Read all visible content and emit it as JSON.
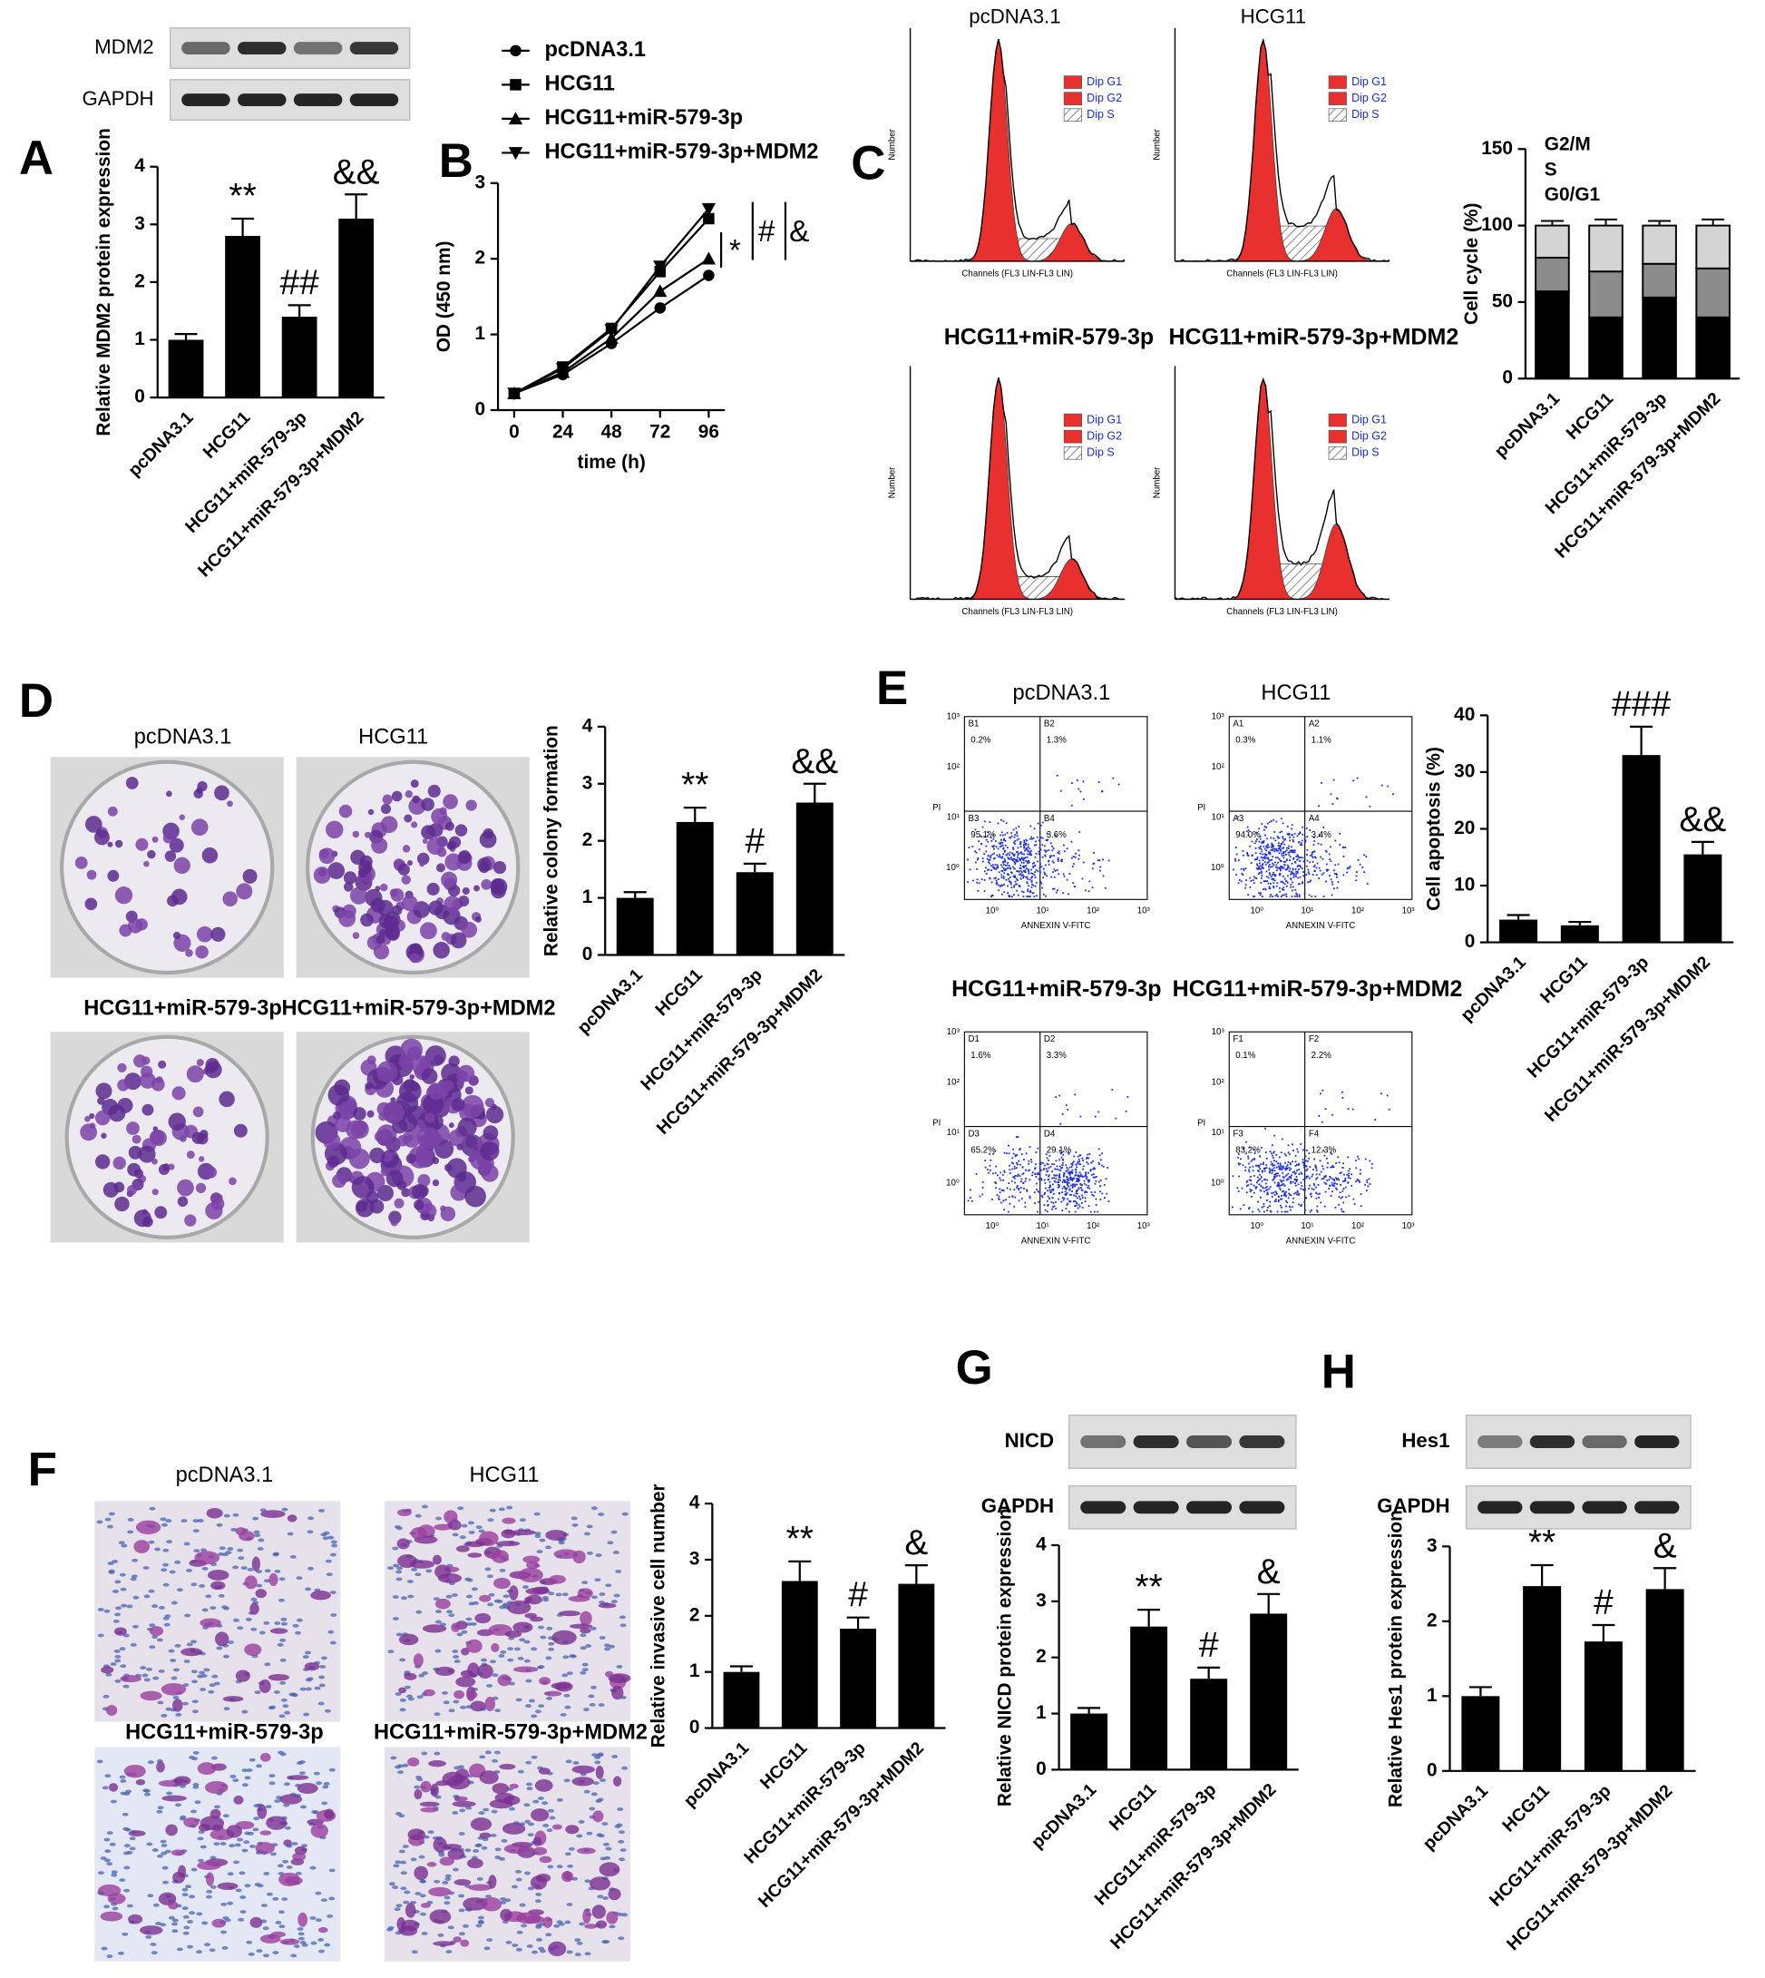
{
  "panels": [
    "A",
    "B",
    "C",
    "D",
    "E",
    "F",
    "G",
    "H"
  ],
  "blots": [
    {
      "labels": [
        "MDM2",
        "GAPDH"
      ]
    },
    {
      "labels": [
        "NICD",
        "GAPDH"
      ]
    },
    {
      "labels": [
        "Hes1",
        "GAPDH"
      ]
    }
  ],
  "cell_cycle_histograms": {
    "titles": [
      "pcDNA3.1",
      "HCG11",
      "HCG11+miR-579-3p",
      "HCG11+miR-579-3p+MDM2"
    ],
    "legend": [
      "Dip G1",
      "Dip G2",
      "Dip S"
    ],
    "ylabel": "Number",
    "xlabel": "Channels (FL3 LIN-FL3 LIN)"
  },
  "colony_images": {
    "titles": [
      "pcDNA3.1",
      "HCG11",
      "HCG11+miR-579-3p",
      "HCG11+miR-579-3p+MDM2"
    ]
  },
  "apoptosis_plots": {
    "titles": [
      "pcDNA3.1",
      "HCG11",
      "HCG11+miR-579-3p",
      "HCG11+miR-579-3p+MDM2"
    ],
    "ylabel": "PI",
    "xlabel": "ANNEXIN V-FITC",
    "ticks": [
      "10⁰",
      "10¹",
      "10²",
      "10³"
    ],
    "quadrants": [
      [
        [
          "B1",
          "0.2%"
        ],
        [
          "B2",
          "1.3%"
        ],
        [
          "B3",
          "95.1%"
        ],
        [
          "B4",
          "3.6%"
        ]
      ],
      [
        [
          "A1",
          "0.3%"
        ],
        [
          "A2",
          "1.1%"
        ],
        [
          "A3",
          "94.0%"
        ],
        [
          "A4",
          "3.4%"
        ]
      ],
      [
        [
          "D1",
          "1.6%"
        ],
        [
          "D2",
          "3.3%"
        ],
        [
          "D3",
          "65.2%"
        ],
        [
          "D4",
          "29.1%"
        ]
      ],
      [
        [
          "F1",
          "0.1%"
        ],
        [
          "F2",
          "2.2%"
        ],
        [
          "F3",
          "83.2%"
        ],
        [
          "F4",
          "12.3%"
        ]
      ]
    ]
  },
  "invasion_images": {
    "titles": [
      "pcDNA3.1",
      "HCG11",
      "HCG11+miR-579-3p",
      "HCG11+miR-579-3p+MDM2"
    ]
  },
  "chart_data": [
    {
      "type": "bar",
      "ylabel": "Relative MDM2 protein expression",
      "categories": [
        "pcDNA3.1",
        "HCG11",
        "HCG11+miR-579-3p",
        "HCG11+miR-579-3p+MDM2"
      ],
      "values": [
        1,
        2.8,
        1.4,
        3.1
      ],
      "errors": [
        0.1,
        0.3,
        0.2,
        0.42
      ],
      "annotations": [
        null,
        "**",
        "##",
        "&&"
      ],
      "color": "#000000",
      "ylim": [
        0,
        4
      ],
      "yticks": [
        0,
        1,
        2,
        3,
        4
      ]
    },
    {
      "type": "line",
      "xlabel": "time (h)",
      "ylabel": "OD (450 nm)",
      "x": [
        0,
        24,
        48,
        72,
        96
      ],
      "series": [
        {
          "name": "pcDNA3.1",
          "marker": "circle",
          "color": "#000000",
          "values": [
            0.22,
            0.47,
            0.88,
            1.35,
            1.78
          ]
        },
        {
          "name": "HCG11",
          "marker": "square",
          "color": "#000000",
          "values": [
            0.22,
            0.57,
            1.08,
            1.83,
            2.53
          ]
        },
        {
          "name": "HCG11+miR-579-3p",
          "marker": "triangle",
          "color": "#000000",
          "values": [
            0.22,
            0.5,
            0.95,
            1.57,
            2.0
          ]
        },
        {
          "name": "HCG11+miR-579-3p+MDM2",
          "marker": "triangle-down",
          "color": "#000000",
          "values": [
            0.22,
            0.55,
            1.06,
            1.9,
            2.66
          ]
        }
      ],
      "annotations": [
        "*",
        "#",
        "&"
      ],
      "xlim": [
        -8,
        104
      ],
      "xticks": [
        0,
        24,
        48,
        72,
        96
      ],
      "ylim": [
        0,
        3
      ],
      "yticks": [
        0,
        1,
        2,
        3
      ]
    },
    {
      "type": "stacked-bar",
      "ylabel": "Cell cycle (%)",
      "categories": [
        "pcDNA3.1",
        "HCG11",
        "HCG11+miR-579-3p",
        "HCG11+miR-579-3p+MDM2"
      ],
      "series": [
        {
          "name": "G0/G1",
          "color": "#000000",
          "values": [
            57,
            40,
            53,
            40
          ],
          "errors": [
            6,
            5,
            6,
            5
          ]
        },
        {
          "name": "S",
          "color": "#8c8c8c",
          "values": [
            22,
            30,
            22,
            32
          ],
          "errors": [
            4,
            4,
            4,
            5
          ]
        },
        {
          "name": "G2/M",
          "color": "#d4d4d4",
          "values": [
            21,
            30,
            25,
            28
          ],
          "errors": [
            3,
            4,
            3,
            4
          ]
        }
      ],
      "ylim": [
        0,
        150
      ],
      "yticks": [
        0,
        50,
        100,
        150
      ]
    },
    {
      "type": "bar",
      "ylabel": "Relative colony formation",
      "categories": [
        "pcDNA3.1",
        "HCG11",
        "HCG11+miR-579-3p",
        "HCG11+miR-579-3p+MDM2"
      ],
      "values": [
        1,
        2.33,
        1.45,
        2.67
      ],
      "errors": [
        0.1,
        0.25,
        0.15,
        0.33
      ],
      "annotations": [
        null,
        "**",
        "#",
        "&&"
      ],
      "color": "#000000",
      "ylim": [
        0,
        4
      ],
      "yticks": [
        0,
        1,
        2,
        3,
        4
      ]
    },
    {
      "type": "bar",
      "ylabel": "Cell apoptosis (%)",
      "categories": [
        "pcDNA3.1",
        "HCG11",
        "HCG11+miR-579-3p",
        "HCG11+miR-579-3p+MDM2"
      ],
      "values": [
        4,
        3,
        33,
        15.5
      ],
      "errors": [
        0.8,
        0.6,
        5,
        2.2
      ],
      "annotations": [
        null,
        null,
        "###",
        "&&"
      ],
      "color": "#000000",
      "ylim": [
        0,
        40
      ],
      "yticks": [
        0,
        10,
        20,
        30,
        40
      ]
    },
    {
      "type": "bar",
      "ylabel": "Relative invasive cell number",
      "categories": [
        "pcDNA3.1",
        "HCG11",
        "HCG11+miR-579-3p",
        "HCG11+miR-579-3p+MDM2"
      ],
      "values": [
        1,
        2.62,
        1.77,
        2.57
      ],
      "errors": [
        0.1,
        0.35,
        0.2,
        0.33
      ],
      "annotations": [
        null,
        "**",
        "#",
        "&"
      ],
      "color": "#000000",
      "ylim": [
        0,
        4
      ],
      "yticks": [
        0,
        1,
        2,
        3,
        4
      ]
    },
    {
      "type": "bar",
      "ylabel": "Relative NICD protein expression",
      "categories": [
        "pcDNA3.1",
        "HCG11",
        "HCG11+miR-579-3p",
        "HCG11+miR-579-3p+MDM2"
      ],
      "values": [
        1,
        2.55,
        1.62,
        2.78
      ],
      "errors": [
        0.1,
        0.3,
        0.2,
        0.35
      ],
      "annotations": [
        null,
        "**",
        "#",
        "&"
      ],
      "color": "#000000",
      "ylim": [
        0,
        4
      ],
      "yticks": [
        0,
        1,
        2,
        3,
        4
      ]
    },
    {
      "type": "bar",
      "ylabel": "Relative Hes1 protein expression",
      "categories": [
        "pcDNA3.1",
        "HCG11",
        "HCG11+miR-579-3p",
        "HCG11+miR-579-3p+MDM2"
      ],
      "values": [
        1,
        2.47,
        1.73,
        2.43
      ],
      "errors": [
        0.12,
        0.28,
        0.22,
        0.28
      ],
      "annotations": [
        null,
        "**",
        "#",
        "&"
      ],
      "color": "#000000",
      "ylim": [
        0,
        3
      ],
      "yticks": [
        0,
        1,
        2,
        3
      ]
    }
  ]
}
